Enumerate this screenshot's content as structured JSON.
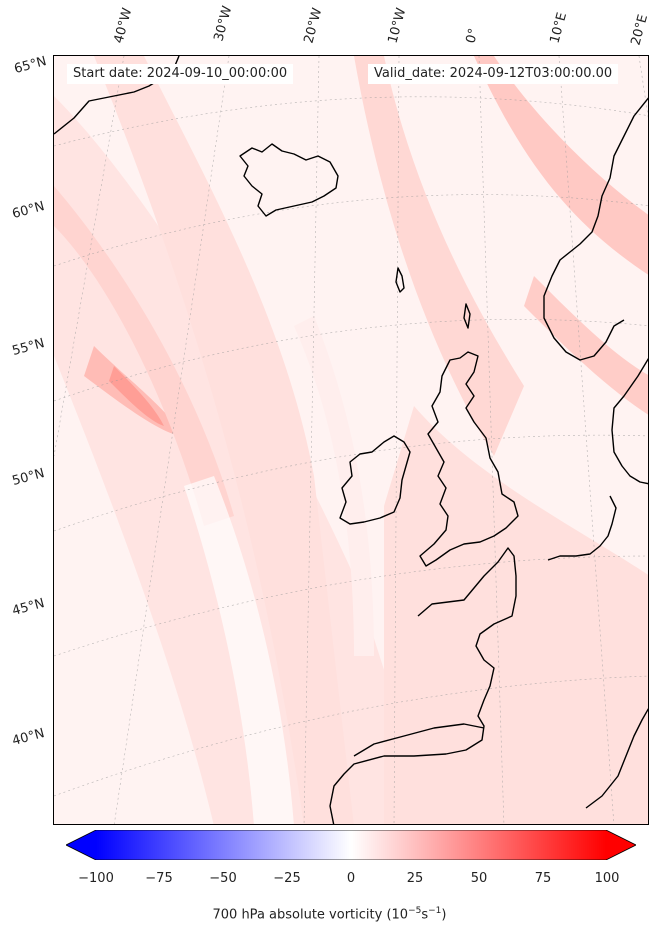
{
  "header": {
    "start_date": "Start date: 2024-09-10_00:00:00",
    "valid_date": "Valid_date: 2024-09-12T03:00:00.00"
  },
  "longitude_labels": [
    "40°W",
    "30°W",
    "20°W",
    "10°W",
    "0°",
    "10°E",
    "20°E"
  ],
  "latitude_labels": [
    "65°N",
    "60°N",
    "55°N",
    "50°N",
    "45°N",
    "40°N"
  ],
  "colorbar": {
    "ticks": [
      "−100",
      "−75",
      "−50",
      "−25",
      "0",
      "25",
      "50",
      "75",
      "100"
    ],
    "min": -100,
    "max": 100,
    "low_color": "#0000ff",
    "mid_color": "#ffffff",
    "high_color": "#ff0000",
    "label_prefix": "700 hPa absolute vorticity (10",
    "label_exp1": "−5",
    "label_mid": "s",
    "label_exp2": "−1",
    "label_suffix": ")"
  },
  "colors": {
    "field_base": "#ffe4e2",
    "field_light": "#fff3f2",
    "field_strong": "#ffbcb6",
    "coastline": "#000000"
  }
}
